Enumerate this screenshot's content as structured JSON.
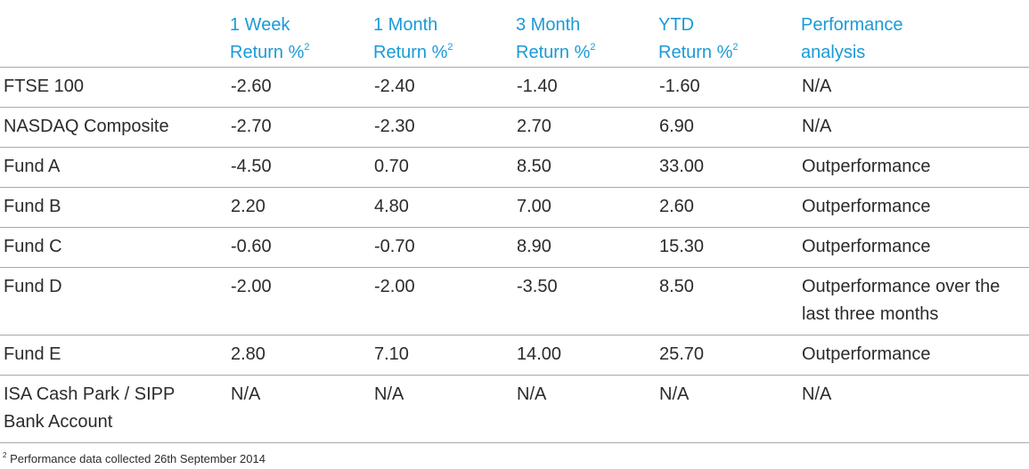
{
  "table": {
    "headers": [
      {
        "line1": "",
        "line2": "",
        "sup": ""
      },
      {
        "line1": "1 Week",
        "line2": "Return %",
        "sup": "2"
      },
      {
        "line1": "1 Month",
        "line2": "Return %",
        "sup": "2"
      },
      {
        "line1": "3 Month",
        "line2": "Return %",
        "sup": "2"
      },
      {
        "line1": "YTD",
        "line2": "Return %",
        "sup": "2"
      },
      {
        "line1": "Performance",
        "line2": "analysis",
        "sup": ""
      }
    ],
    "rows": [
      {
        "name": "FTSE 100",
        "week": "-2.60",
        "month": "-2.40",
        "three_month": "-1.40",
        "ytd": "-1.60",
        "analysis": "N/A"
      },
      {
        "name": "NASDAQ Composite",
        "week": "-2.70",
        "month": "-2.30",
        "three_month": "2.70",
        "ytd": "6.90",
        "analysis": "N/A"
      },
      {
        "name": "Fund A",
        "week": "-4.50",
        "month": "0.70",
        "three_month": "8.50",
        "ytd": "33.00",
        "analysis": "Outperformance"
      },
      {
        "name": "Fund B",
        "week": "2.20",
        "month": "4.80",
        "three_month": "7.00",
        "ytd": "2.60",
        "analysis": "Outperformance"
      },
      {
        "name": "Fund C",
        "week": "-0.60",
        "month": "-0.70",
        "three_month": "8.90",
        "ytd": "15.30",
        "analysis": "Outperformance"
      },
      {
        "name": "Fund D",
        "week": "-2.00",
        "month": "-2.00",
        "three_month": "-3.50",
        "ytd": "8.50",
        "analysis": "Outperformance over the last three months"
      },
      {
        "name": "Fund E",
        "week": "2.80",
        "month": "7.10",
        "three_month": "14.00",
        "ytd": "25.70",
        "analysis": "Outperformance"
      },
      {
        "name": "ISA Cash Park / SIPP Bank Account",
        "week": "N/A",
        "month": "N/A",
        "three_month": "N/A",
        "ytd": "N/A",
        "analysis": "N/A"
      }
    ]
  },
  "footnote": {
    "marker": "2",
    "text": "Performance data collected 26th September 2014"
  },
  "colors": {
    "header_text": "#1a9ad7",
    "body_text": "#2b2b2b",
    "rule": "#a8a8a8"
  }
}
